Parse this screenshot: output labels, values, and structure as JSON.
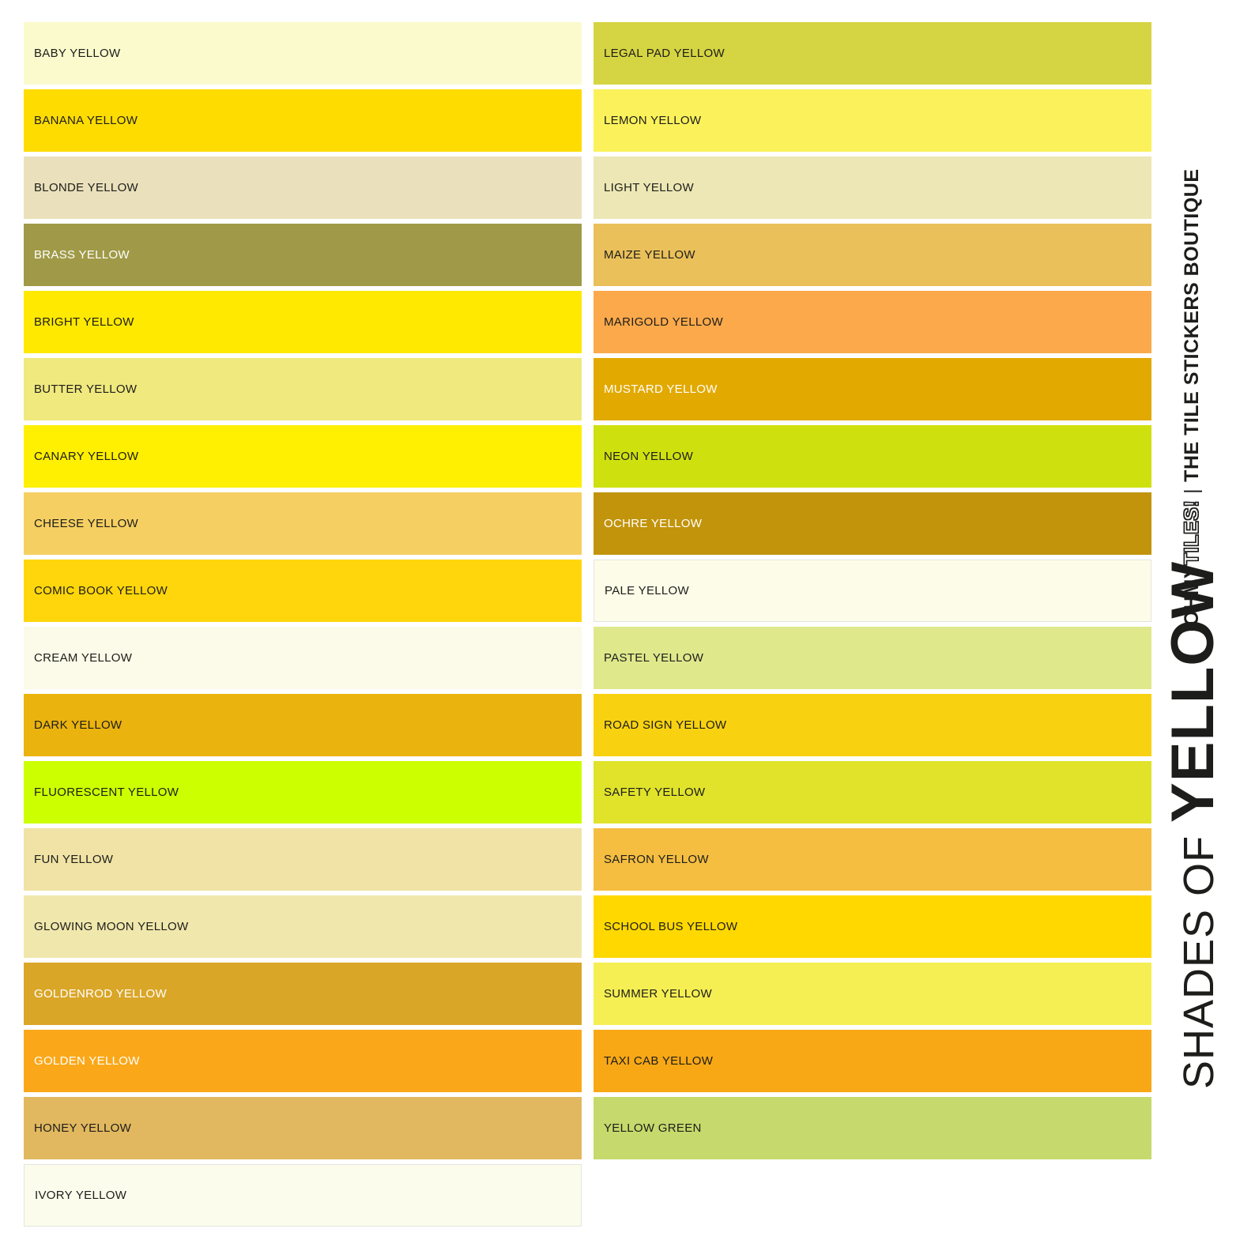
{
  "page": {
    "background": "#ffffff",
    "text_dark": "#1d1d1b",
    "text_light": "#ffffff"
  },
  "title": {
    "prefix": "SHADES OF ",
    "main": "YELLOW",
    "color": "#1d1d1b"
  },
  "brand": {
    "bold": "OHMY",
    "outline": "TILES!",
    "separator": "|",
    "tagline": "THE TILE STICKERS BOUTIQUE",
    "color": "#1d1d1b"
  },
  "swatch_columns": {
    "left": [
      {
        "label": "BABY YELLOW",
        "color": "#fbfacc",
        "text_color": "#1d1d1b",
        "border": false
      },
      {
        "label": "BANANA YELLOW",
        "color": "#fedc00",
        "text_color": "#1d1d1b",
        "border": false
      },
      {
        "label": "BLONDE YELLOW",
        "color": "#eae0bb",
        "text_color": "#1d1d1b",
        "border": false
      },
      {
        "label": "BRASS YELLOW",
        "color": "#a09a48",
        "text_color": "#ffffff",
        "border": false
      },
      {
        "label": "BRIGHT YELLOW",
        "color": "#ffe900",
        "text_color": "#1d1d1b",
        "border": false
      },
      {
        "label": "BUTTER YELLOW",
        "color": "#f0e97e",
        "text_color": "#1d1d1b",
        "border": false
      },
      {
        "label": "CANARY YELLOW",
        "color": "#ffef00",
        "text_color": "#1d1d1b",
        "border": false
      },
      {
        "label": "CHEESE YELLOW",
        "color": "#f6cf62",
        "text_color": "#1d1d1b",
        "border": false
      },
      {
        "label": "COMIC BOOK YELLOW",
        "color": "#ffd60b",
        "text_color": "#1d1d1b",
        "border": false
      },
      {
        "label": "CREAM YELLOW",
        "color": "#fcfae8",
        "text_color": "#1d1d1b",
        "border": false
      },
      {
        "label": "DARK YELLOW",
        "color": "#ebb30e",
        "text_color": "#1d1d1b",
        "border": false
      },
      {
        "label": "FLUORESCENT YELLOW",
        "color": "#ccff00",
        "text_color": "#1d1d1b",
        "border": false
      },
      {
        "label": "FUN YELLOW",
        "color": "#f0e3a5",
        "text_color": "#1d1d1b",
        "border": false
      },
      {
        "label": "GLOWING MOON YELLOW",
        "color": "#f0e7ac",
        "text_color": "#1d1d1b",
        "border": false
      },
      {
        "label": "GOLDENROD YELLOW",
        "color": "#daa628",
        "text_color": "#ffffff",
        "border": false
      },
      {
        "label": "GOLDEN YELLOW",
        "color": "#faa819",
        "text_color": "#ffffff",
        "border": false
      },
      {
        "label": "HONEY YELLOW",
        "color": "#e1b85f",
        "text_color": "#1d1d1b",
        "border": false
      },
      {
        "label": "IVORY YELLOW",
        "color": "#fcfcec",
        "text_color": "#1d1d1b",
        "border": true
      }
    ],
    "right": [
      {
        "label": "LEGAL PAD YELLOW",
        "color": "#d5d442",
        "text_color": "#1d1d1b",
        "border": false
      },
      {
        "label": "LEMON YELLOW",
        "color": "#fbf25b",
        "text_color": "#1d1d1b",
        "border": false
      },
      {
        "label": "LIGHT YELLOW",
        "color": "#ece7b4",
        "text_color": "#1d1d1b",
        "border": false
      },
      {
        "label": "MAIZE YELLOW",
        "color": "#eac05a",
        "text_color": "#1d1d1b",
        "border": false
      },
      {
        "label": "MARIGOLD YELLOW",
        "color": "#fba94b",
        "text_color": "#1d1d1b",
        "border": false
      },
      {
        "label": "MUSTARD YELLOW",
        "color": "#e2a900",
        "text_color": "#ffffff",
        "border": false
      },
      {
        "label": "NEON YELLOW",
        "color": "#cfe00f",
        "text_color": "#1d1d1b",
        "border": false
      },
      {
        "label": "OCHRE YELLOW",
        "color": "#c2940c",
        "text_color": "#ffffff",
        "border": false
      },
      {
        "label": "PALE YELLOW",
        "color": "#fdfce8",
        "text_color": "#1d1d1b",
        "border": true
      },
      {
        "label": "PASTEL YELLOW",
        "color": "#dfe98c",
        "text_color": "#1d1d1b",
        "border": false
      },
      {
        "label": "ROAD SIGN YELLOW",
        "color": "#f8d211",
        "text_color": "#1d1d1b",
        "border": false
      },
      {
        "label": "SAFETY YELLOW",
        "color": "#e0e32a",
        "text_color": "#1d1d1b",
        "border": false
      },
      {
        "label": "SAFRON YELLOW",
        "color": "#f5be41",
        "text_color": "#1d1d1b",
        "border": false
      },
      {
        "label": "SCHOOL BUS YELLOW",
        "color": "#ffd800",
        "text_color": "#1d1d1b",
        "border": false
      },
      {
        "label": "SUMMER YELLOW",
        "color": "#f6ef53",
        "text_color": "#1d1d1b",
        "border": false
      },
      {
        "label": "TAXI CAB YELLOW",
        "color": "#f8a815",
        "text_color": "#1d1d1b",
        "border": false
      },
      {
        "label": "YELLOW GREEN",
        "color": "#c6d96c",
        "text_color": "#1d1d1b",
        "border": false
      }
    ]
  }
}
